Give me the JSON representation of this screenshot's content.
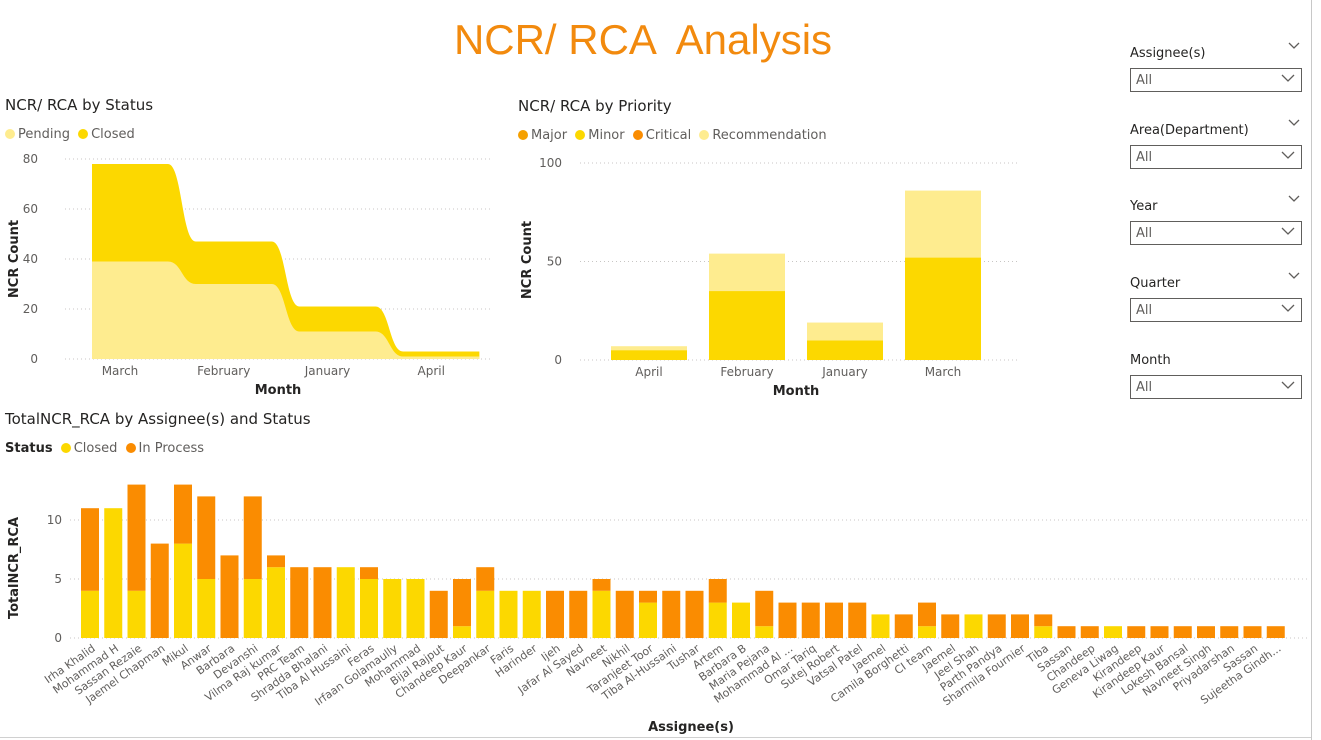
{
  "page": {
    "title": "NCR/ RCA  Analysis"
  },
  "colors": {
    "closed": "#fcd800",
    "pending": "#feec8f",
    "in_process": "#fa8c01",
    "major": "#f5a000",
    "minor": "#fcd800",
    "critical": "#fa8c01",
    "recommendation": "#feec8f",
    "title": "#f28a0e"
  },
  "slicers": [
    {
      "title": "Assignee(s)",
      "value": "All"
    },
    {
      "title": "Area(Department)",
      "value": "All"
    },
    {
      "title": "Year",
      "value": "All"
    },
    {
      "title": "Quarter",
      "value": "All"
    },
    {
      "title": "Month",
      "value": "All"
    }
  ],
  "status_chart": {
    "legend": [
      {
        "label": "Pending",
        "color": "#feec8f"
      },
      {
        "label": "Closed",
        "color": "#fcd800"
      }
    ]
  },
  "priority_chart": {
    "legend": [
      {
        "label": "Major",
        "color": "#f5a000"
      },
      {
        "label": "Minor",
        "color": "#fcd800"
      },
      {
        "label": "Critical",
        "color": "#fa8c01"
      },
      {
        "label": "Recommendation",
        "color": "#feec8f"
      }
    ]
  },
  "assignee_chart": {
    "legend_title": "Status",
    "legend": [
      {
        "label": "Closed",
        "color": "#fcd800"
      },
      {
        "label": "In Process",
        "color": "#fa8c01"
      }
    ]
  },
  "chart_data": [
    {
      "type": "area",
      "title": "NCR/ RCA by Status",
      "xlabel": "Month",
      "ylabel": "NCR Count",
      "categories": [
        "March",
        "February",
        "January",
        "April"
      ],
      "ylim": [
        0,
        80
      ],
      "yticks": [
        0,
        20,
        40,
        60,
        80
      ],
      "stacked": true,
      "series": [
        {
          "name": "Pending",
          "values": [
            39,
            30,
            11,
            1
          ]
        },
        {
          "name": "Closed",
          "values": [
            39,
            17,
            10,
            2
          ]
        }
      ],
      "grid": true,
      "legend": "top-left"
    },
    {
      "type": "bar",
      "title": "NCR/ RCA by Priority",
      "xlabel": "Month",
      "ylabel": "NCR Count",
      "categories": [
        "April",
        "February",
        "January",
        "March"
      ],
      "ylim": [
        0,
        100
      ],
      "yticks": [
        0,
        50,
        100
      ],
      "stacked": true,
      "series": [
        {
          "name": "Minor",
          "values": [
            5,
            35,
            10,
            52
          ]
        },
        {
          "name": "Recommendation",
          "values": [
            2,
            19,
            9,
            34
          ]
        }
      ],
      "grid": true,
      "legend": "top-left"
    },
    {
      "type": "bar",
      "title": "TotalNCR_RCA by Assignee(s) and Status",
      "xlabel": "Assignee(s)",
      "ylabel": "TotalNCR_RCA",
      "ylim": [
        0,
        13
      ],
      "yticks": [
        0,
        5,
        10
      ],
      "stacked": true,
      "categories": [
        "Irha Khalid",
        "Mohammad H",
        "Sassan Rezaie",
        "Jaemel Chapman",
        "Mikul",
        "Anwar",
        "Barbara",
        "Devanshi",
        "Vilma Raj kumar",
        "PRC Team",
        "Shradda Bhalani",
        "Tiba Al Hussaini",
        "Feras",
        "Irfaan Golamaully",
        "Mohammad",
        "Bijal Rajput",
        "Chandeep Kaur",
        "Deepankar",
        "Faris",
        "Harinder",
        "Ijeh",
        "Jafar Al Sayed",
        "Navneet",
        "Nikhil",
        "Taranjeet Toor",
        "Tiba Al-Hussaini",
        "Tushar",
        "Artem",
        "Barbara B",
        "Maria Pejana",
        "Mohammad Al ...",
        "Omar Tariq",
        "Sutej Robert",
        "Vatsal Patel",
        "Jaemel",
        "Camila Borghetti",
        "CI team",
        "Jaemel",
        "Jeel Shah",
        "Parth Pandya",
        "Sharmila Fournier",
        "Tiba",
        "Sassan",
        "Chandeep",
        "Geneva Liwag",
        "Kirandeep",
        "Kirandeep Kaur",
        "Lokesh Bansal",
        "Navneet Singh",
        "Priyadarshan",
        "Sassan",
        "Sujeetha Gindh..."
      ],
      "series": [
        {
          "name": "Closed",
          "values": [
            4,
            11,
            4,
            0,
            8,
            5,
            0,
            5,
            6,
            0,
            0,
            6,
            5,
            5,
            5,
            0,
            1,
            4,
            4,
            4,
            0,
            0,
            4,
            0,
            3,
            0,
            0,
            3,
            3,
            1,
            0,
            0,
            0,
            0,
            2,
            0,
            1,
            0,
            2,
            0,
            0,
            1,
            0,
            0,
            1,
            0,
            0,
            0,
            0,
            0,
            0,
            0
          ]
        },
        {
          "name": "In Process",
          "values": [
            7,
            0,
            9,
            8,
            5,
            7,
            7,
            7,
            1,
            6,
            6,
            0,
            1,
            0,
            0,
            4,
            4,
            2,
            0,
            0,
            4,
            4,
            1,
            4,
            1,
            4,
            4,
            2,
            0,
            3,
            3,
            3,
            3,
            3,
            0,
            2,
            2,
            2,
            0,
            2,
            2,
            1,
            1,
            1,
            0,
            1,
            1,
            1,
            1,
            1,
            1,
            1
          ]
        }
      ],
      "grid": true,
      "legend": "top-left"
    }
  ]
}
